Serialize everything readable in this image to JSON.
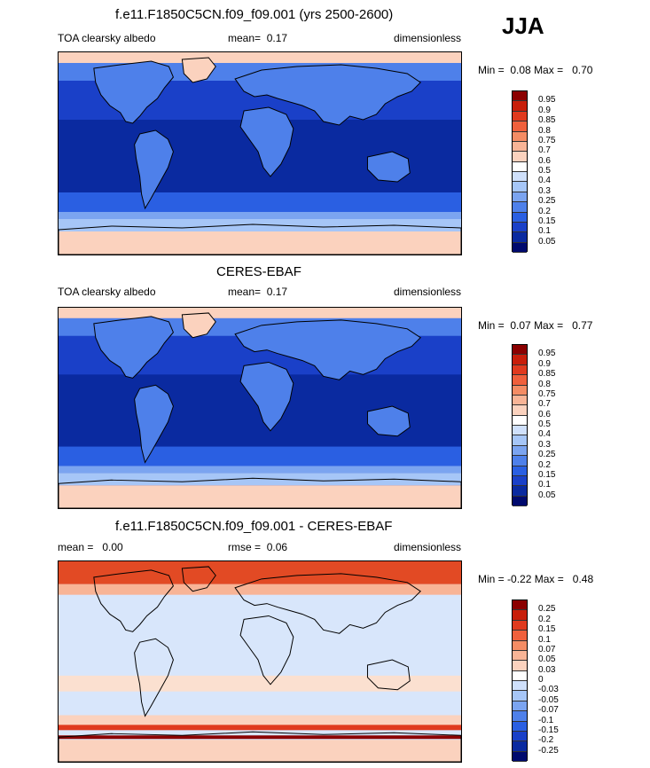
{
  "season": "JJA",
  "panels": [
    {
      "title": "f.e11.F1850C5CN.f09_f09.001 (yrs 2500-2600)",
      "left_label": "TOA clearsky albedo",
      "mid_label": "mean=",
      "mid_value": "0.17",
      "units": "dimensionless",
      "min_label": "Min =",
      "min_value": "0.08",
      "max_label": "Max =",
      "max_value": "0.70",
      "colorbar_levels": [
        "0.95",
        "0.9",
        "0.85",
        "0.8",
        "0.75",
        "0.7",
        "0.6",
        "0.5",
        "0.4",
        "0.3",
        "0.25",
        "0.2",
        "0.15",
        "0.1",
        "0.05"
      ],
      "colorbar_colors": [
        "#8b0000",
        "#c81e0a",
        "#e03a1e",
        "#f0603c",
        "#f48c64",
        "#f8b496",
        "#fbd2be",
        "#ffffff",
        "#cfe0fb",
        "#a6c6f7",
        "#7ba4f0",
        "#4e80ea",
        "#2a5fe2",
        "#1a40c8",
        "#0a2aa0",
        "#000a6e"
      ]
    },
    {
      "title": "CERES-EBAF",
      "left_label": "TOA clearsky albedo",
      "mid_label": "mean=",
      "mid_value": "0.17",
      "units": "dimensionless",
      "min_label": "Min =",
      "min_value": "0.07",
      "max_label": "Max =",
      "max_value": "0.77",
      "colorbar_levels": [
        "0.95",
        "0.9",
        "0.85",
        "0.8",
        "0.75",
        "0.7",
        "0.6",
        "0.5",
        "0.4",
        "0.3",
        "0.25",
        "0.2",
        "0.15",
        "0.1",
        "0.05"
      ],
      "colorbar_colors": [
        "#8b0000",
        "#c81e0a",
        "#e03a1e",
        "#f0603c",
        "#f48c64",
        "#f8b496",
        "#fbd2be",
        "#ffffff",
        "#cfe0fb",
        "#a6c6f7",
        "#7ba4f0",
        "#4e80ea",
        "#2a5fe2",
        "#1a40c8",
        "#0a2aa0",
        "#000a6e"
      ]
    },
    {
      "title": "f.e11.F1850C5CN.f09_f09.001 - CERES-EBAF",
      "left_label": "mean =   0.00",
      "mid_label": "rmse =",
      "mid_value": "0.06",
      "units": "dimensionless",
      "min_label": "Min =",
      "min_value": "-0.22",
      "max_label": "Max =",
      "max_value": "0.48",
      "colorbar_levels": [
        "0.25",
        "0.2",
        "0.15",
        "0.1",
        "0.07",
        "0.05",
        "0.03",
        "0",
        "-0.03",
        "-0.05",
        "-0.07",
        "-0.1",
        "-0.15",
        "-0.2",
        "-0.25"
      ],
      "colorbar_colors": [
        "#8b0000",
        "#c81e0a",
        "#e03a1e",
        "#f0603c",
        "#f48c64",
        "#f8b496",
        "#fbd2be",
        "#ffffff",
        "#cfe0fb",
        "#a6c6f7",
        "#7ba4f0",
        "#4e80ea",
        "#2a5fe2",
        "#1a40c8",
        "#0a2aa0",
        "#000a6e"
      ]
    }
  ]
}
